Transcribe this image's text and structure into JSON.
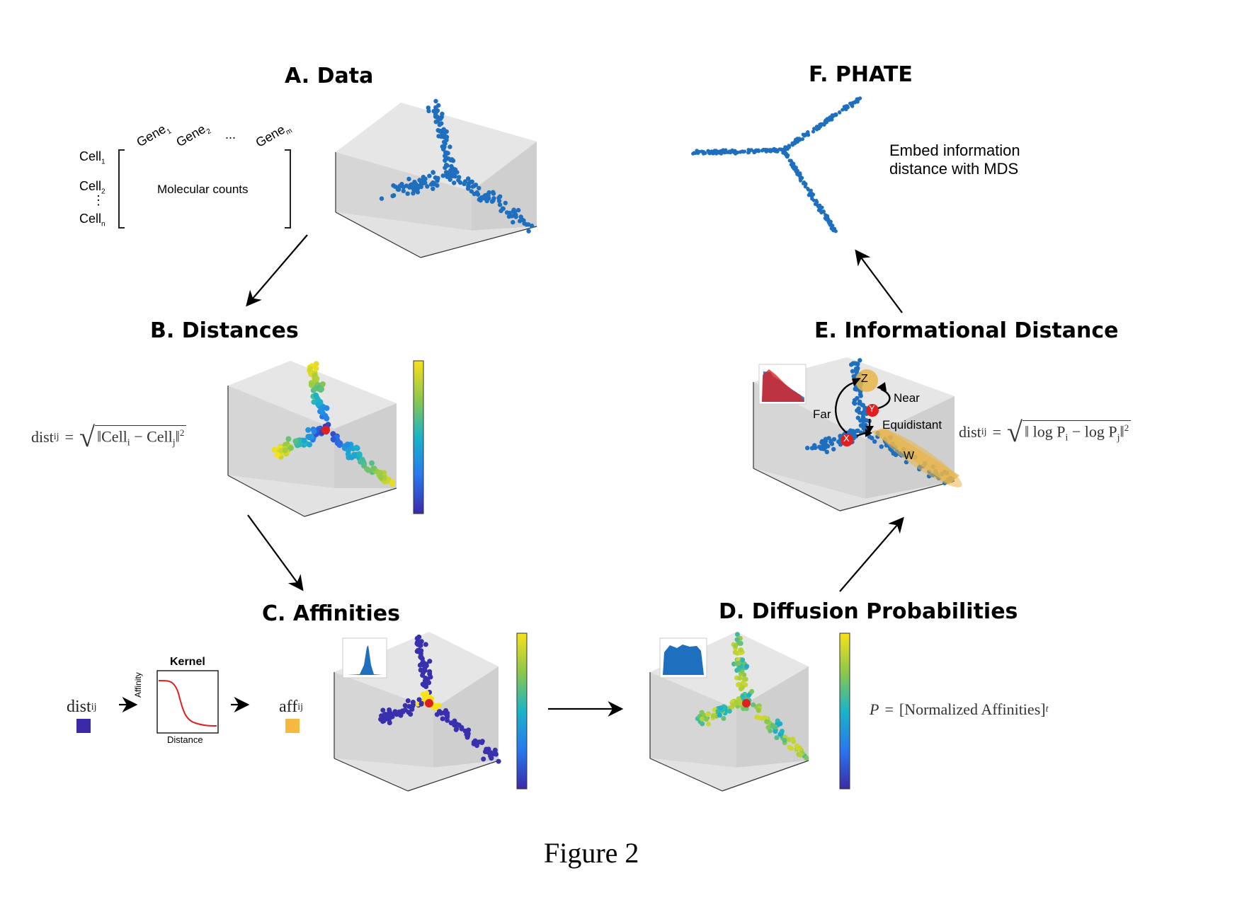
{
  "panels": {
    "a": {
      "title": "A. Data",
      "genes": [
        "Gene",
        "Gene",
        "...",
        "Gene"
      ],
      "gene_subs": [
        "1",
        "2",
        "",
        "m"
      ],
      "cells": [
        "Cell",
        "Cell",
        "⋮",
        "Cell"
      ],
      "cell_subs": [
        "1",
        "2",
        "",
        "n"
      ],
      "matrix_label": "Molecular counts"
    },
    "b": {
      "title": "B. Distances",
      "formula": {
        "lhs": "dist",
        "lhs_sub": "ij",
        "eq": "=",
        "body": "‖Cell",
        "sub_i": "i",
        "minus": "− Cell",
        "sub_j": "j",
        "end": "‖",
        "sup": "2"
      }
    },
    "c": {
      "title": "C. Affinities",
      "dist_label": "dist",
      "dist_sub": "ij",
      "kernel_title": "Kernel",
      "kernel_ylabel": "Affinity",
      "kernel_xlabel": "Distance",
      "aff_label": "aff",
      "aff_sub": "ij"
    },
    "d": {
      "title": "D. Diffusion Probabilities",
      "formula": {
        "lhs": "P",
        "eq": "=",
        "body": "[Normalized Affinities]",
        "sup": "t"
      }
    },
    "e": {
      "title": "E. Informational Distance",
      "labels": {
        "z": "Z",
        "y": "Y",
        "x": "X",
        "w": "W",
        "far": "Far",
        "near": "Near",
        "equidistant": "Equidistant"
      },
      "formula": {
        "lhs": "dist",
        "lhs_sub": "ij",
        "eq": "=",
        "body": "‖ log P",
        "sub_i": "i",
        "minus": "− log P",
        "sub_j": "j",
        "end": "‖",
        "sup": "2"
      }
    },
    "f": {
      "title": "F. PHATE",
      "description_line1": "Embed information",
      "description_line2": "distance with MDS"
    }
  },
  "colors": {
    "point_blue": "#1f6fbf",
    "panel_bg": "#dcdcdc",
    "affinity_low": "#3b2aa8",
    "affinity_high": "#f5b942",
    "kernel_curve": "#e02020",
    "highlight": "#e8b54a",
    "marker_red": "#e02020"
  },
  "caption": "Figure 2"
}
